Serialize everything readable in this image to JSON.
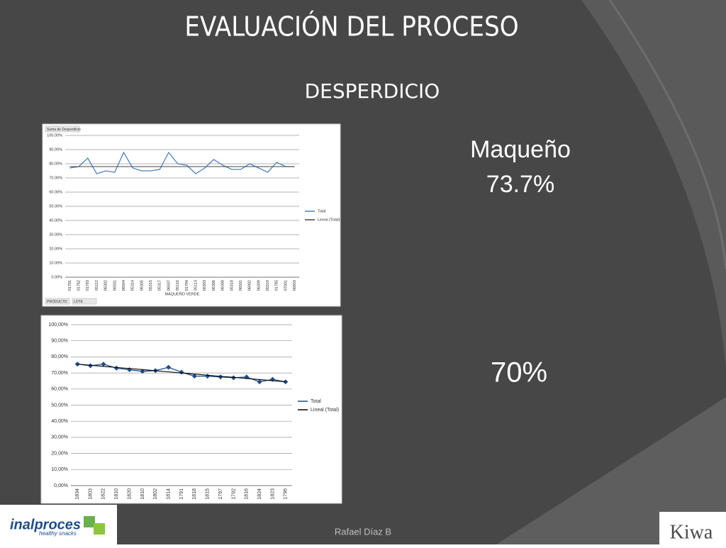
{
  "slide": {
    "title": "EVALUACIÓN DEL PROCESO",
    "subtitle": "DESPERDICIO",
    "product": "Maqueño",
    "result_1": "73.7%",
    "result_2": "70%",
    "footer": "Rafael Díaz B",
    "logo_left": "inalproces",
    "logo_left_tagline": "healthy snacks",
    "logo_right": "Kiwa"
  },
  "chart_data": [
    {
      "type": "line",
      "field_label": "Suma de Desperdicio",
      "x_label": "MAQUEÑO VERDE",
      "filter_buttons": [
        "PRODUCTO",
        "LOTE"
      ],
      "categories": [
        "01781",
        "01782",
        "01783",
        "05112",
        "06302",
        "06501",
        "06504",
        "05314",
        "06305",
        "05315",
        "05317",
        "06507",
        "05116",
        "01784",
        "05113",
        "06303",
        "06306",
        "06308",
        "05318",
        "06501",
        "06902",
        "06309",
        "05319",
        "01785",
        "07001",
        "06903"
      ],
      "series": [
        {
          "name": "Total",
          "color": "#4f81bd",
          "values": [
            77,
            78,
            84,
            73,
            75,
            74,
            88,
            77,
            75,
            75,
            76,
            88,
            80,
            79,
            73,
            77,
            83,
            79,
            76,
            76,
            80,
            77,
            74,
            81,
            78,
            78
          ]
        },
        {
          "name": "Lineal (Total)",
          "color": "#444444",
          "values": [
            78,
            78,
            78,
            78,
            78,
            78,
            78,
            78,
            78,
            78,
            78,
            78,
            78,
            78,
            78,
            78,
            78,
            78,
            78,
            78,
            78,
            78,
            78,
            78,
            78,
            78
          ]
        }
      ],
      "ylim": [
        0,
        100
      ],
      "yticks": [
        {
          "value": 0,
          "label": "0.00%"
        },
        {
          "value": 10,
          "label": "10.00%"
        },
        {
          "value": 20,
          "label": "20.00%"
        },
        {
          "value": 30,
          "label": "30.00%"
        },
        {
          "value": 40,
          "label": "40.00%"
        },
        {
          "value": 50,
          "label": "50.00%"
        },
        {
          "value": 60,
          "label": "60.00%"
        },
        {
          "value": 70,
          "label": "70.00%"
        },
        {
          "value": 80,
          "label": "80.00%"
        },
        {
          "value": 90,
          "label": "90.00%"
        },
        {
          "value": 100,
          "label": "100.00%"
        }
      ],
      "grid": true,
      "legend": "right"
    },
    {
      "type": "line",
      "categories": [
        "1834",
        "1803",
        "1822",
        "1810",
        "1820",
        "1810",
        "1802",
        "1814",
        "1791",
        "1818",
        "1815",
        "1797",
        "1792",
        "1816",
        "1824",
        "1823",
        "1796"
      ],
      "series": [
        {
          "name": "Total",
          "color": "#1f4e8c",
          "marker": "diamond",
          "values": [
            75.5,
            74.5,
            75.5,
            73,
            72,
            71,
            71.5,
            73.5,
            70.5,
            68,
            68,
            67.5,
            67,
            67.5,
            64.5,
            66,
            64.5
          ]
        },
        {
          "name": "Lineal (Total)",
          "color": "#000000",
          "values": [
            75.5,
            74.8,
            74.1,
            73.4,
            72.8,
            72.1,
            71.4,
            70.7,
            70,
            69.3,
            68.6,
            67.9,
            67.3,
            66.6,
            65.9,
            65.2,
            64.5
          ]
        }
      ],
      "ylim": [
        0,
        100
      ],
      "yticks": [
        {
          "value": 0,
          "label": "0,00%"
        },
        {
          "value": 10,
          "label": "10,00%"
        },
        {
          "value": 20,
          "label": "20,00%"
        },
        {
          "value": 30,
          "label": "30,00%"
        },
        {
          "value": 40,
          "label": "40,00%"
        },
        {
          "value": 50,
          "label": "50,00%"
        },
        {
          "value": 60,
          "label": "60,00%"
        },
        {
          "value": 70,
          "label": "70,00%"
        },
        {
          "value": 80,
          "label": "80,00%"
        },
        {
          "value": 90,
          "label": "90,00%"
        },
        {
          "value": 100,
          "label": "100,00%"
        }
      ],
      "grid": true,
      "legend": "right"
    }
  ]
}
